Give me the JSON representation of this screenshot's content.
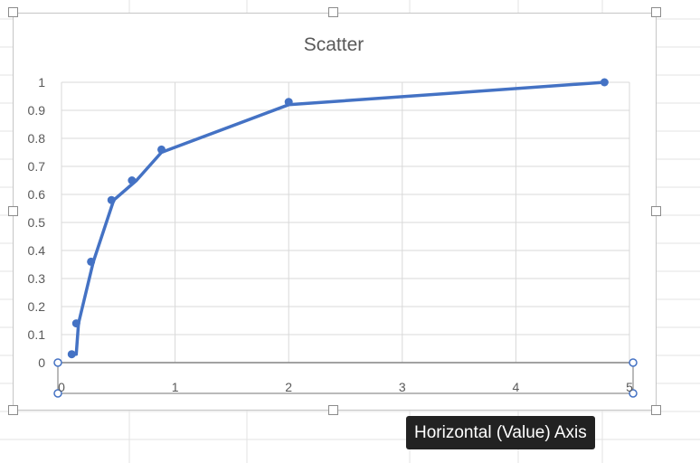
{
  "chart_data": {
    "type": "scatter",
    "title": "Scatter",
    "xlabel": "",
    "ylabel": "",
    "xlim": [
      0,
      5
    ],
    "ylim": [
      0,
      1
    ],
    "x_ticks": [
      "0",
      "1",
      "2",
      "3",
      "4",
      "5"
    ],
    "y_ticks": [
      "0",
      "0.1",
      "0.2",
      "0.3",
      "0.4",
      "0.5",
      "0.6",
      "0.7",
      "0.8",
      "0.9",
      "1"
    ],
    "grid": true,
    "legend": "none",
    "series": [
      {
        "color": "#4472c4",
        "points": [
          {
            "x": 0.09,
            "y": 0.03
          },
          {
            "x": 0.13,
            "y": 0.14
          },
          {
            "x": 0.26,
            "y": 0.36
          },
          {
            "x": 0.44,
            "y": 0.58
          },
          {
            "x": 0.62,
            "y": 0.65
          },
          {
            "x": 0.88,
            "y": 0.76
          },
          {
            "x": 2.0,
            "y": 0.93
          },
          {
            "x": 4.78,
            "y": 1.0
          }
        ],
        "line": [
          {
            "x": 0.09,
            "y": 0.03
          },
          {
            "x": 0.13,
            "y": 0.03
          },
          {
            "x": 0.15,
            "y": 0.14
          },
          {
            "x": 0.28,
            "y": 0.36
          },
          {
            "x": 0.46,
            "y": 0.58
          },
          {
            "x": 0.66,
            "y": 0.65
          },
          {
            "x": 0.88,
            "y": 0.75
          },
          {
            "x": 2.0,
            "y": 0.92
          },
          {
            "x": 4.78,
            "y": 1.0
          }
        ]
      }
    ],
    "selected_axis": "horizontal"
  },
  "tooltip": {
    "text": "Horizontal (Value) Axis"
  },
  "colors": {
    "series": "#4472c4",
    "grid": "#d9d9d9",
    "axis": "#8c8c8c",
    "selection": "#4472c4",
    "tick_text": "#595959",
    "title_text": "#595959"
  }
}
